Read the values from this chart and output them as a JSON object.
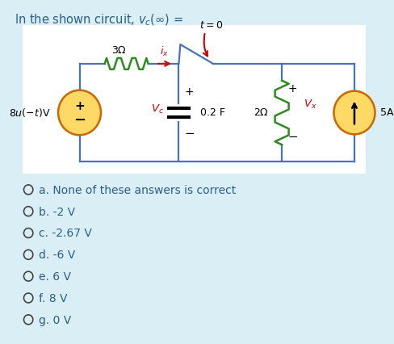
{
  "title_line1": "In the shown circuit, ",
  "title_vc": "v_C(\\infty) =",
  "bg_color": "#daeef5",
  "circuit_bg": "#ffffff",
  "choices": [
    "a. None of these answers is correct",
    "b. -2 V",
    "c. -2.67 V",
    "d. -6 V",
    "e. 6 V",
    "f. 8 V",
    "g. 0 V"
  ],
  "wire_color": "#4472c4",
  "resistor_color_3ohm": "#2e8b20",
  "resistor_color_2ohm": "#2e8b20",
  "arrow_color": "#cc0000",
  "ix_color": "#cc0000",
  "source_fill": "#ffd966",
  "source_stroke": "#cc6600",
  "text_color": "#000000",
  "vc_color": "#cc0000",
  "vx_color": "#cc0000",
  "switch_color": "#4472c4"
}
